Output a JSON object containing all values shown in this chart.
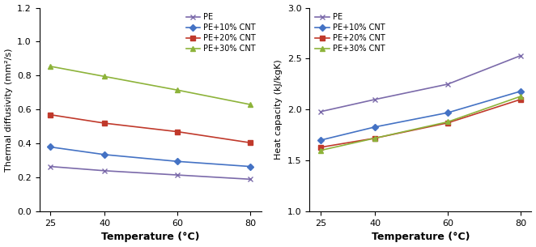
{
  "temperature": [
    25,
    40,
    60,
    80
  ],
  "thermal_diffusivity": {
    "PE": [
      0.265,
      0.24,
      0.215,
      0.19
    ],
    "PE+10% CNT": [
      0.38,
      0.335,
      0.295,
      0.265
    ],
    "PE+20% CNT": [
      0.57,
      0.52,
      0.47,
      0.405
    ],
    "PE+30% CNT": [
      0.855,
      0.795,
      0.715,
      0.63
    ]
  },
  "heat_capacity": {
    "PE": [
      1.98,
      2.1,
      2.25,
      2.53
    ],
    "PE+10% CNT": [
      1.7,
      1.83,
      1.97,
      2.18
    ],
    "PE+20% CNT": [
      1.63,
      1.72,
      1.87,
      2.1
    ],
    "PE+30% CNT": [
      1.6,
      1.72,
      1.88,
      2.13
    ]
  },
  "colors": {
    "PE": "#7b6aaa",
    "PE+10% CNT": "#4472c4",
    "PE+20% CNT": "#c0392b",
    "PE+30% CNT": "#8db33a"
  },
  "markers": {
    "PE": "x",
    "PE+10% CNT": "D",
    "PE+20% CNT": "s",
    "PE+30% CNT": "^"
  },
  "ylabel_left": "Thermal diffusivity (mm²/s)",
  "ylabel_right": "Heat capacity (kJ/kgK)",
  "xlabel": "Temperature (°C)",
  "xlim": [
    22,
    83
  ],
  "ylim_left": [
    0.0,
    1.2
  ],
  "ylim_right": [
    1.0,
    3.0
  ],
  "yticks_left": [
    0.0,
    0.2,
    0.4,
    0.6,
    0.8,
    1.0,
    1.2
  ],
  "yticks_right": [
    1.0,
    1.5,
    2.0,
    2.5,
    3.0
  ],
  "xticks": [
    25,
    40,
    60,
    80
  ],
  "legend_order": [
    "PE",
    "PE+10% CNT",
    "PE+20% CNT",
    "PE+30% CNT"
  ],
  "markersize": 4,
  "linewidth": 1.2
}
